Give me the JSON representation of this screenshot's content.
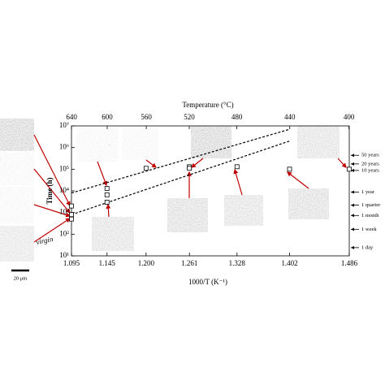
{
  "chart_data": {
    "type": "scatter",
    "x2label": "Temperature (°C)",
    "xlabel": "1000/T (K⁻¹)",
    "ylabel": "Time (h)",
    "xlim": [
      1.095,
      1.486
    ],
    "xticks": [
      1.095,
      1.145,
      {
        "value": 1.2,
        "label": "1.200"
      },
      1.261,
      1.328,
      1.402,
      1.486
    ],
    "x2ticks": [
      640,
      600,
      560,
      520,
      480,
      440,
      400
    ],
    "ylim": [
      10,
      10000000
    ],
    "yscale": "log",
    "yticks": [
      {
        "value": 10,
        "label": "10¹"
      },
      {
        "value": 100,
        "label": "10²"
      },
      {
        "value": 1000,
        "label": "10³"
      },
      {
        "value": 10000,
        "label": "10⁴"
      },
      {
        "value": 100000,
        "label": "10⁵"
      },
      {
        "value": 1000000,
        "label": "10⁶"
      },
      {
        "value": 10000000,
        "label": "10⁷"
      }
    ],
    "y2ticks": [
      {
        "value": 438300,
        "label": "50 years"
      },
      {
        "value": 175320,
        "label": "20 years"
      },
      {
        "value": 87660,
        "label": "10 years"
      },
      {
        "value": 8766,
        "label": "1 year"
      },
      {
        "value": 2190,
        "label": "1 quarter"
      },
      {
        "value": 730,
        "label": "1 month"
      },
      {
        "value": 168,
        "label": "1 week"
      },
      {
        "value": 24,
        "label": "1 day"
      }
    ],
    "series": [
      {
        "type": "line",
        "color": "#000000",
        "x": [
          1.095,
          1.402
        ],
        "values": [
          8000,
          7000000
        ]
      },
      {
        "type": "line",
        "color": "#000000",
        "x": [
          1.095,
          1.402
        ],
        "values": [
          800,
          2000000
        ]
      },
      {
        "type": "scatter",
        "color": "#000000",
        "x": [
          1.095,
          1.095,
          1.095,
          1.145,
          1.145,
          1.145,
          1.2,
          1.261,
          1.261,
          1.328,
          1.402,
          1.486
        ],
        "values": [
          2000,
          800,
          500,
          13000,
          6600,
          3000,
          110000,
          130000,
          110000,
          130000,
          100000,
          100000
        ]
      }
    ],
    "annotations": [
      "virgin",
      "20 μm"
    ]
  }
}
